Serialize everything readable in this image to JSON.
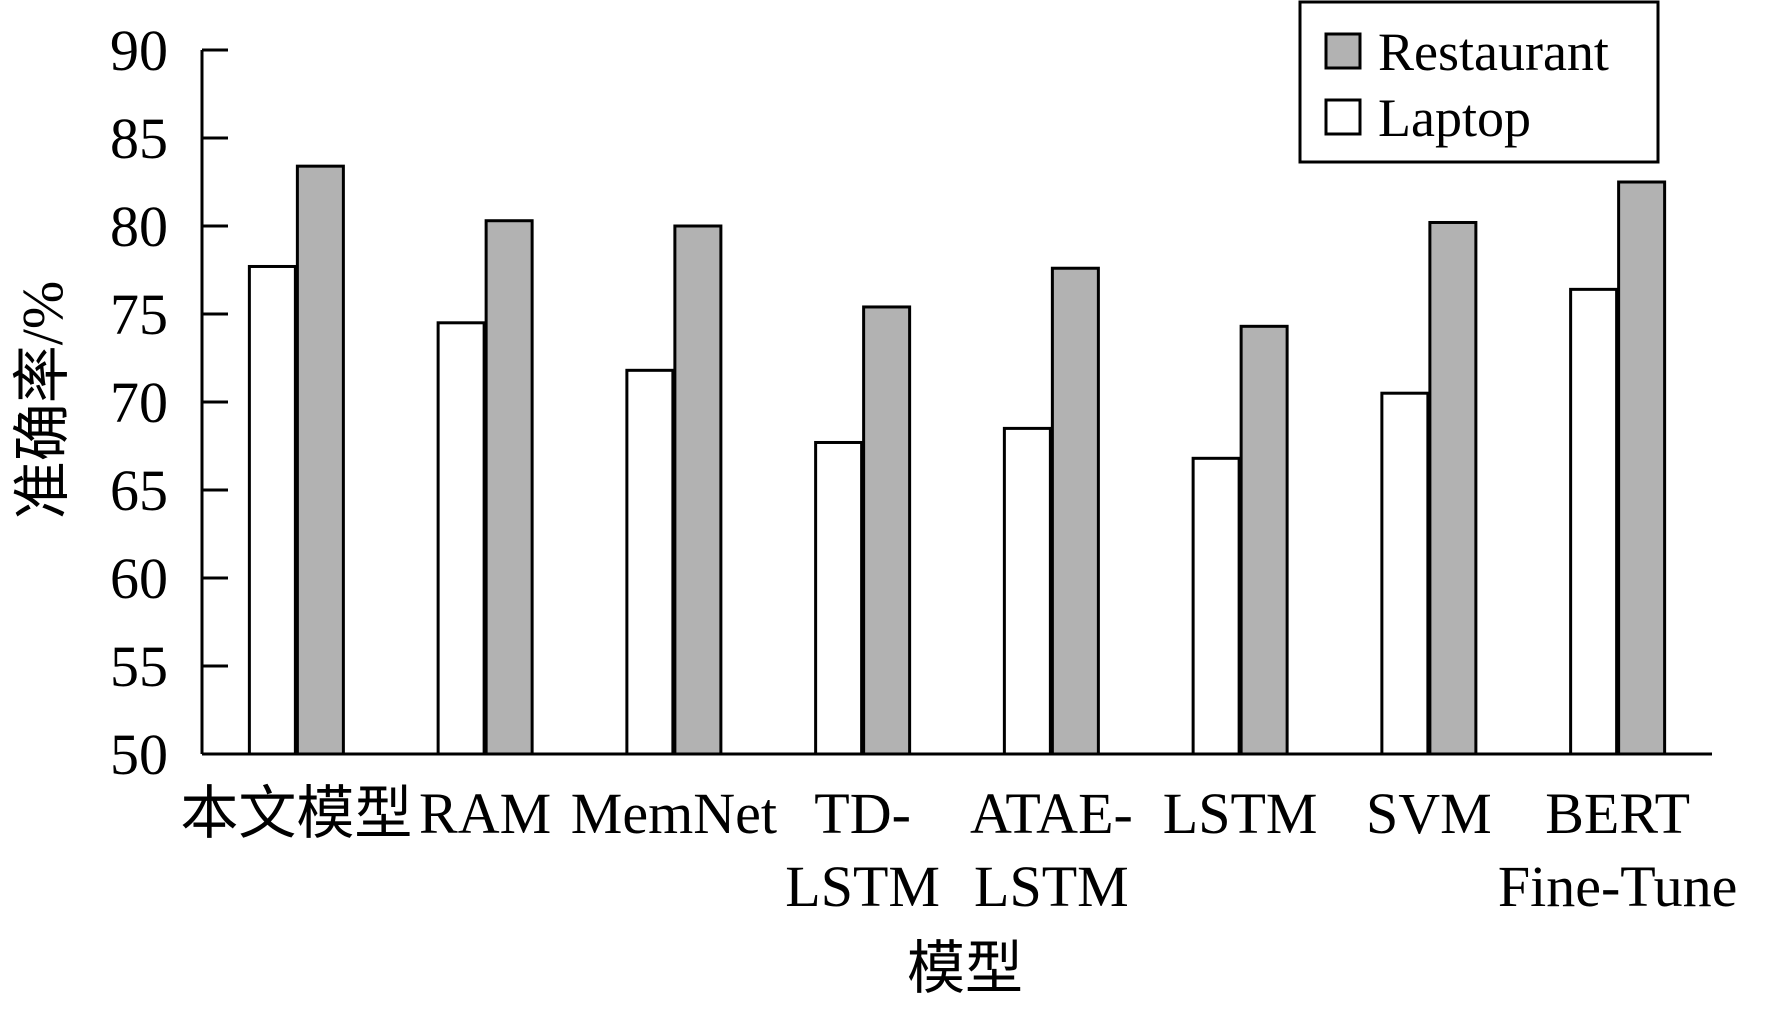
{
  "chart_data": {
    "type": "bar",
    "title": "",
    "xlabel": "模型",
    "ylabel": "准确率/%",
    "ylim": [
      50,
      90
    ],
    "yticks": [
      50,
      55,
      60,
      65,
      70,
      75,
      80,
      85,
      90
    ],
    "categories": [
      [
        "本文模型"
      ],
      [
        "RAM"
      ],
      [
        "MemNet"
      ],
      [
        "TD-",
        "LSTM"
      ],
      [
        "ATAE-",
        "LSTM"
      ],
      [
        "LSTM"
      ],
      [
        "SVM"
      ],
      [
        "BERT",
        "Fine-Tune"
      ]
    ],
    "series": [
      {
        "name": "Laptop",
        "color": "#ffffff",
        "values": [
          77.7,
          74.5,
          71.8,
          67.7,
          68.5,
          66.8,
          70.5,
          76.4
        ]
      },
      {
        "name": "Restaurant",
        "color": "#b2b2b2",
        "values": [
          83.4,
          80.3,
          80.0,
          75.4,
          77.6,
          74.3,
          80.2,
          82.5
        ]
      }
    ],
    "legend": {
      "position": "top-right",
      "order": [
        "Restaurant",
        "Laptop"
      ]
    },
    "grid": false
  }
}
